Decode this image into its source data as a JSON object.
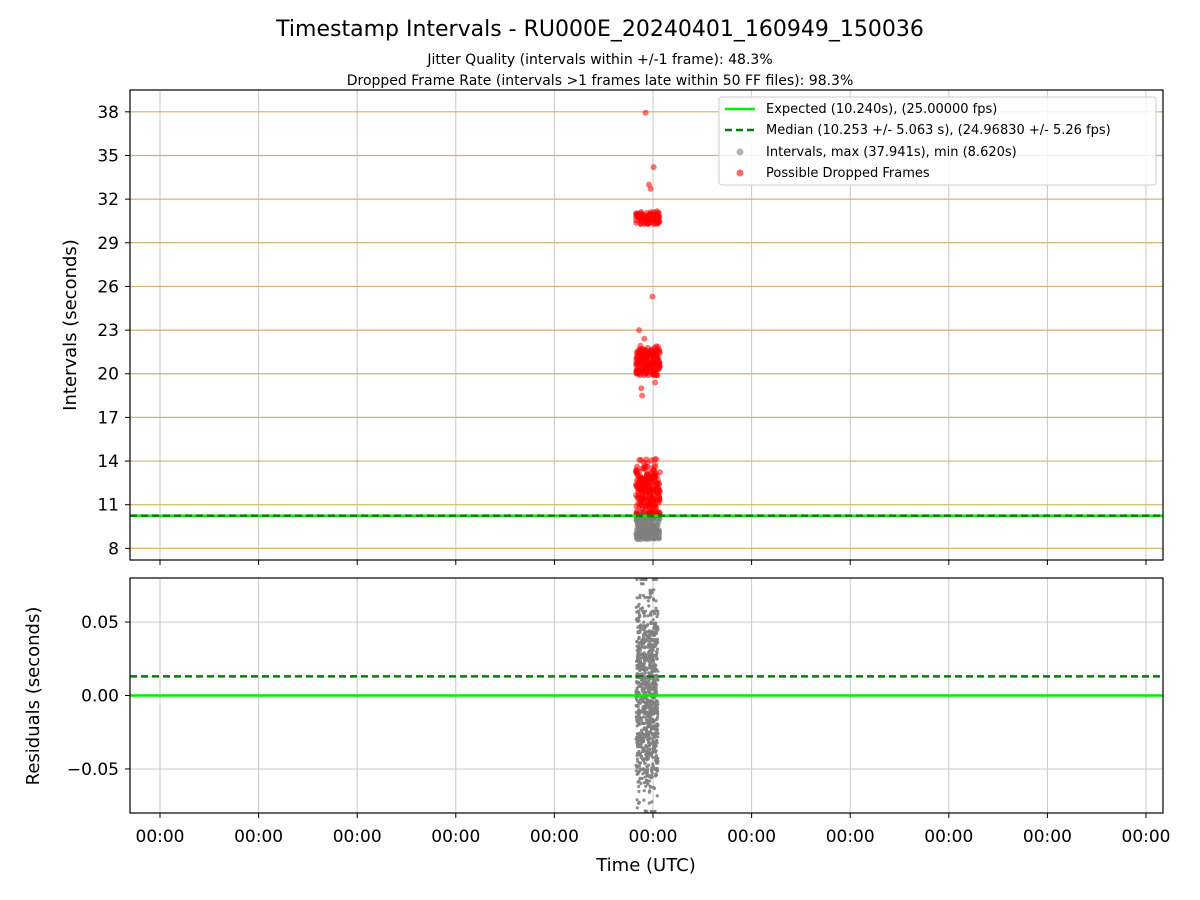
{
  "figure": {
    "title": "Timestamp Intervals - RU000E_20240401_160949_150036",
    "subtitle_1": "Jitter Quality (intervals within +/-1 frame): 48.3%",
    "subtitle_2": "Dropped Frame Rate (intervals >1 frames late within 50 FF files): 98.3%",
    "xlabel": "Time (UTC)"
  },
  "colors": {
    "expected": "#00ee00",
    "median": "#008000",
    "intervals": "#808080",
    "dropped": "#ff0000",
    "hgrid_top": "#d2b46c",
    "grid": "#c8c8c8"
  },
  "chart_data": [
    {
      "type": "scatter",
      "ylabel": "Intervals (seconds)",
      "ylim": [
        7.2,
        39.5
      ],
      "yticks": [
        8,
        11,
        14,
        17,
        20,
        23,
        26,
        29,
        32,
        35,
        38
      ],
      "xticks": [
        "00:00",
        "00:00",
        "00:00",
        "00:00",
        "00:00",
        "00:00",
        "00:00",
        "00:00",
        "00:00",
        "00:00",
        "00:00"
      ],
      "grid": true,
      "legend_position": "top-right",
      "legend": [
        "Expected (10.240s), (25.00000 fps)",
        "Median (10.253 +/- 5.063 s), (24.96830 +/- 5.26 fps)",
        "Intervals, max (37.941s), min (8.620s)",
        "Possible Dropped Frames"
      ],
      "expected_interval": 10.24,
      "median_interval": 10.253,
      "interval_max": 37.941,
      "interval_min": 8.62,
      "series": [
        {
          "name": "Intervals, max (37.941s), min (8.620s)",
          "cluster_center": 10.24,
          "cluster_spread": [
            8.62,
            10.5
          ]
        },
        {
          "name": "Possible Dropped Frames",
          "clusters": [
            {
              "center": 30.7,
              "spread": [
                30.3,
                31.5
              ]
            },
            {
              "center": 20.8,
              "spread": [
                19.9,
                22.3
              ]
            },
            {
              "center": 12.0,
              "spread": [
                10.3,
                14.9
              ]
            }
          ],
          "outliers": [
            37.94,
            34.2,
            33.0,
            32.7,
            25.3,
            23.0,
            22.4,
            19.4,
            19.0,
            18.5
          ]
        }
      ]
    },
    {
      "type": "scatter",
      "ylabel": "Residuals (seconds)",
      "ylim": [
        -0.08,
        0.08
      ],
      "yticks": [
        -0.05,
        0.0,
        0.05
      ],
      "ytick_labels": [
        "−0.05",
        "0.00",
        "0.05"
      ],
      "expected_residual": 0.0,
      "median_residual": 0.013,
      "residual_range": [
        -0.08,
        0.08
      ]
    }
  ]
}
